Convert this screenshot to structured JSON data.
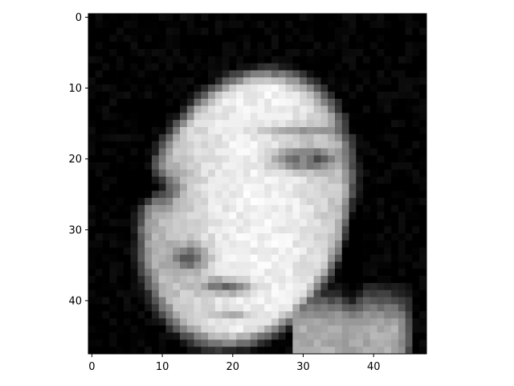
{
  "chart_data": {
    "type": "heatmap",
    "colormap": "gray",
    "rows": 48,
    "cols": 48,
    "value_range": [
      0,
      255
    ],
    "title": "",
    "xlabel": "",
    "ylabel": "",
    "xlim": [
      -0.5,
      47.5
    ],
    "ylim": [
      47.5,
      -0.5
    ],
    "x_ticks": [
      0,
      10,
      20,
      30,
      40
    ],
    "y_ticks": [
      0,
      10,
      20,
      30,
      40
    ],
    "x_tick_labels": [
      "0",
      "10",
      "20",
      "30",
      "40"
    ],
    "y_tick_labels": [
      "0",
      "10",
      "20",
      "30",
      "40"
    ],
    "grid": false,
    "description": "48x48 grayscale pixel image of a face (approximated)"
  }
}
